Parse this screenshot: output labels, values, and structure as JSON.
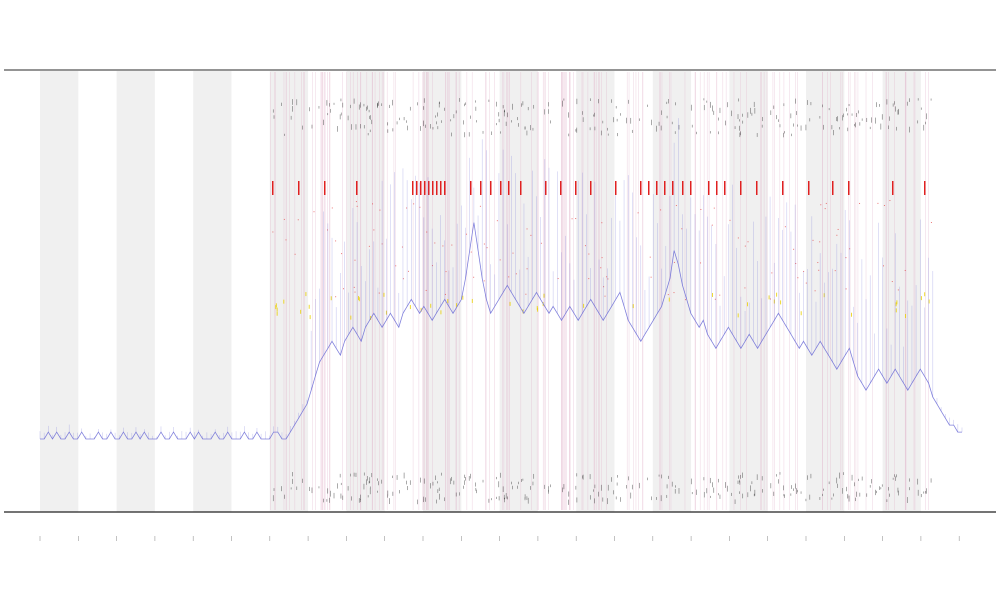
{
  "chart_data": {
    "type": "line",
    "title": "",
    "xlabel": "",
    "ylabel": "",
    "grid": false,
    "colors": {
      "signal": "#6b6bd6",
      "event_red": "#e02020",
      "event_yellow": "#e8d000",
      "event_black": "#555555",
      "band": "#dcdcdc",
      "event_line": "#e0b0c8",
      "axis": "#555555"
    },
    "ylim": [
      0,
      100
    ],
    "num_periods": 24,
    "shaded_periods": [
      0,
      2,
      4,
      6,
      8,
      10,
      12,
      14,
      16,
      18,
      20,
      22
    ],
    "series": [
      {
        "values": [
          3,
          3,
          4,
          3,
          4,
          3,
          3,
          4,
          3,
          3,
          4,
          3,
          3,
          3,
          4,
          3,
          3,
          4,
          3,
          3,
          4,
          3,
          3,
          4,
          3,
          4,
          3,
          3,
          3,
          4,
          3,
          3,
          4,
          3,
          3,
          3,
          4,
          3,
          4,
          3,
          3,
          3,
          4,
          3,
          3,
          4,
          3,
          3,
          3,
          4,
          3,
          3,
          4,
          3,
          3,
          3,
          4,
          4,
          3,
          3,
          4,
          5,
          6,
          7,
          8,
          10,
          12,
          14,
          15,
          16,
          17,
          16,
          15,
          17,
          18,
          19,
          18,
          17,
          19,
          20,
          21,
          20,
          19,
          20,
          21,
          20,
          19,
          21,
          22,
          23,
          22,
          21,
          22,
          21,
          20,
          21,
          22,
          23,
          22,
          21,
          22,
          23,
          26,
          30,
          34,
          30,
          26,
          23,
          21,
          22,
          23,
          24,
          25,
          24,
          23,
          22,
          21,
          22,
          23,
          24,
          23,
          22,
          21,
          22,
          21,
          20,
          21,
          22,
          21,
          20,
          21,
          22,
          23,
          22,
          21,
          20,
          21,
          22,
          23,
          24,
          22,
          20,
          19,
          18,
          17,
          18,
          19,
          20,
          21,
          22,
          24,
          26,
          30,
          28,
          25,
          23,
          21,
          20,
          19,
          20,
          18,
          17,
          16,
          17,
          18,
          19,
          18,
          17,
          16,
          17,
          18,
          17,
          16,
          17,
          18,
          19,
          20,
          21,
          20,
          19,
          18,
          17,
          16,
          17,
          16,
          15,
          16,
          17,
          16,
          15,
          14,
          13,
          14,
          15,
          16,
          14,
          12,
          11,
          10,
          11,
          12,
          13,
          12,
          11,
          12,
          13,
          12,
          11,
          10,
          11,
          12,
          13,
          12,
          11,
          9,
          8,
          7,
          6,
          5,
          5,
          4,
          4
        ]
      }
    ]
  },
  "chart_elements": {
    "legend_label": "",
    "x_axis_label": "",
    "y_tick_labels": [
      "",
      "",
      "",
      "",
      ""
    ],
    "x_tick_labels": [
      "",
      "",
      "",
      "",
      "",
      "",
      "",
      "",
      "",
      "",
      "",
      "",
      "",
      "",
      "",
      "",
      "",
      "",
      "",
      "",
      "",
      "",
      "",
      "",
      "",
      ""
    ]
  }
}
